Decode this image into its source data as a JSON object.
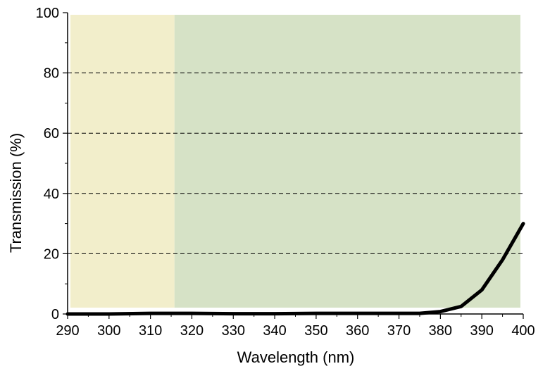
{
  "chart_data": {
    "type": "line",
    "title": "",
    "xlabel": "Wavelength (nm)",
    "ylabel": "Transmission (%)",
    "xlim": [
      290,
      400
    ],
    "ylim": [
      0,
      100
    ],
    "xticks": [
      290,
      300,
      310,
      320,
      330,
      340,
      350,
      360,
      370,
      380,
      390,
      400
    ],
    "yticks": [
      0,
      20,
      40,
      60,
      80,
      100
    ],
    "xtick_labels": [
      "290",
      "300",
      "310",
      "320",
      "330",
      "340",
      "350",
      "360",
      "370",
      "380",
      "390",
      "400"
    ],
    "ytick_labels": [
      "0",
      "20",
      "40",
      "60",
      "80",
      "100"
    ],
    "grid": "horizontal dashed",
    "legend": "none",
    "regions": [
      {
        "x_start": 290,
        "x_end": 315.8,
        "color": "#f2eecb"
      },
      {
        "x_start": 315.8,
        "x_end": 400,
        "color": "#d6e2c6"
      }
    ],
    "series": [
      {
        "color": "#000000",
        "x": [
          290,
          300,
          310,
          320,
          330,
          340,
          350,
          360,
          370,
          375,
          380,
          385,
          390,
          395,
          400
        ],
        "y": [
          0,
          0,
          0.2,
          0.2,
          0.1,
          0.1,
          0.2,
          0.2,
          0.2,
          0.2,
          0.8,
          2.5,
          8,
          18,
          30
        ]
      }
    ]
  }
}
